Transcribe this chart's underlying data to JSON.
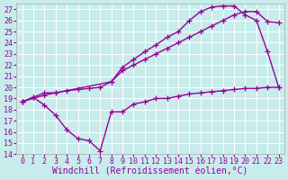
{
  "xlabel": "Windchill (Refroidissement éolien,°C)",
  "bg_color": "#c8ecec",
  "grid_color": "#ffffff",
  "line_color": "#990099",
  "xlim": [
    -0.5,
    23.5
  ],
  "ylim": [
    14,
    27.5
  ],
  "xticks": [
    0,
    1,
    2,
    3,
    4,
    5,
    6,
    7,
    8,
    9,
    10,
    11,
    12,
    13,
    14,
    15,
    16,
    17,
    18,
    19,
    20,
    21,
    22,
    23
  ],
  "yticks": [
    14,
    15,
    16,
    17,
    18,
    19,
    20,
    21,
    22,
    23,
    24,
    25,
    26,
    27
  ],
  "curve1_x": [
    0,
    1,
    2,
    3,
    4,
    5,
    6,
    7,
    8,
    9,
    10,
    11,
    12,
    13,
    14,
    15,
    16,
    17,
    18,
    19,
    20,
    21,
    22,
    23
  ],
  "curve1_y": [
    18.7,
    19.1,
    18.4,
    17.5,
    16.2,
    15.4,
    15.2,
    14.3,
    17.8,
    17.8,
    18.5,
    18.7,
    19.0,
    19.0,
    19.2,
    19.4,
    19.5,
    19.6,
    19.7,
    19.8,
    19.9,
    19.9,
    20.0,
    20.0
  ],
  "curve2_x": [
    0,
    1,
    2,
    3,
    4,
    5,
    6,
    7,
    8,
    9,
    10,
    11,
    12,
    13,
    14,
    15,
    16,
    17,
    18,
    19,
    20,
    21,
    22,
    23
  ],
  "curve2_y": [
    18.7,
    19.1,
    19.5,
    19.5,
    19.7,
    19.8,
    19.9,
    20.0,
    20.5,
    21.5,
    22.0,
    22.5,
    23.0,
    23.5,
    24.0,
    24.5,
    25.0,
    25.5,
    26.0,
    26.5,
    26.8,
    26.8,
    25.9,
    25.8
  ],
  "curve3_x": [
    0,
    2,
    3,
    8,
    9,
    10,
    11,
    12,
    13,
    14,
    15,
    16,
    17,
    18,
    19,
    20,
    21,
    22,
    23
  ],
  "curve3_y": [
    18.7,
    19.3,
    19.5,
    20.5,
    21.8,
    22.5,
    23.2,
    23.8,
    24.5,
    25.0,
    26.0,
    26.8,
    27.2,
    27.3,
    27.3,
    26.5,
    26.0,
    23.2,
    20.0
  ],
  "marker": "+",
  "markersize": 4,
  "linewidth": 1.0,
  "tick_fontsize": 6,
  "xlabel_fontsize": 7
}
